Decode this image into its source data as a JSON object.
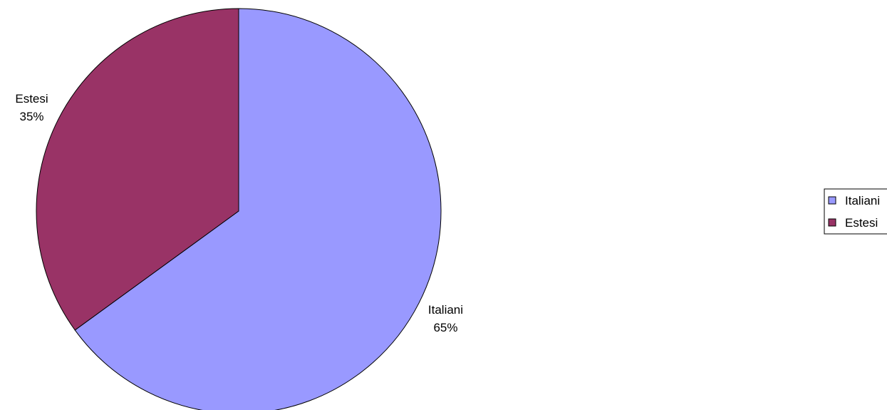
{
  "chart_data": {
    "type": "pie",
    "title": "",
    "slices": [
      {
        "name": "Italiani",
        "value": 65,
        "label_percent": "65%",
        "color": "#9999ff"
      },
      {
        "name": "Estesi",
        "value": 35,
        "label_percent": "35%",
        "color": "#993366"
      }
    ],
    "start_angle": "12 o'clock",
    "direction": "clockwise",
    "legend": {
      "placement": "right",
      "entries": [
        "Italiani",
        "Estesi"
      ]
    },
    "data_labels": "category name and percent, outside the slices"
  }
}
